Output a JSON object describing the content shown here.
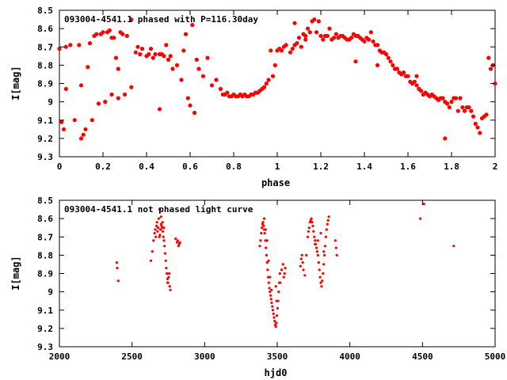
{
  "chart_data": [
    {
      "type": "scatter",
      "title": "093004-4541.1 phased with P=116.30day",
      "xlabel": "phase",
      "ylabel": "I[mag]",
      "xlim": [
        0,
        2
      ],
      "ylim": [
        8.5,
        9.3
      ],
      "y_inverted": true,
      "grid": false,
      "legend": "none",
      "marker_color": "#ff0000",
      "xticks": [
        {
          "value": 0,
          "label": "0"
        },
        {
          "value": 0.2,
          "label": "0.2"
        },
        {
          "value": 0.4,
          "label": "0.4"
        },
        {
          "value": 0.6,
          "label": "0.6"
        },
        {
          "value": 0.8,
          "label": "0.8"
        },
        {
          "value": 1,
          "label": "1"
        },
        {
          "value": 1.2,
          "label": "1.2"
        },
        {
          "value": 1.4,
          "label": "1.4"
        },
        {
          "value": 1.6,
          "label": "1.6"
        },
        {
          "value": 1.8,
          "label": "1.8"
        },
        {
          "value": 2,
          "label": "2"
        }
      ],
      "yticks": [
        {
          "value": 8.5,
          "label": "8.5"
        },
        {
          "value": 8.6,
          "label": "8.6"
        },
        {
          "value": 8.7,
          "label": "8.7"
        },
        {
          "value": 8.8,
          "label": "8.8"
        },
        {
          "value": 8.9,
          "label": "8.9"
        },
        {
          "value": 9,
          "label": "9"
        },
        {
          "value": 9.1,
          "label": "9.1"
        },
        {
          "value": 9.2,
          "label": "9.2"
        },
        {
          "value": 9.3,
          "label": "9.3"
        }
      ],
      "x": [
        0.0,
        0.01,
        0.02,
        0.03,
        0.05,
        0.07,
        0.09,
        0.1,
        0.11,
        0.12,
        0.14,
        0.15,
        0.16,
        0.17,
        0.18,
        0.19,
        0.2,
        0.21,
        0.22,
        0.23,
        0.24,
        0.25,
        0.26,
        0.27,
        0.28,
        0.29,
        0.3,
        0.31,
        0.33,
        0.35,
        0.36,
        0.37,
        0.38,
        0.4,
        0.41,
        0.42,
        0.43,
        0.44,
        0.46,
        0.47,
        0.48,
        0.5,
        0.51,
        0.52,
        0.54,
        0.56,
        0.57,
        0.59,
        0.6,
        0.62,
        0.64,
        0.66,
        0.68,
        0.7,
        0.72,
        0.74,
        0.75,
        0.76,
        0.77,
        0.78,
        0.79,
        0.8,
        0.81,
        0.82,
        0.83,
        0.84,
        0.85,
        0.86,
        0.87,
        0.88,
        0.89,
        0.9,
        0.91,
        0.92,
        0.93,
        0.94,
        0.95,
        0.96,
        0.97,
        0.98,
        0.99,
        1.0,
        1.01,
        1.02,
        1.03,
        1.04,
        1.06,
        1.07,
        1.08,
        1.09,
        1.1,
        1.11,
        1.12,
        1.13,
        1.14,
        1.15,
        1.16,
        1.17,
        1.18,
        1.19,
        1.2,
        1.21,
        1.22,
        1.23,
        1.24,
        1.25,
        1.26,
        1.27,
        1.28,
        1.29,
        1.3,
        1.31,
        1.32,
        1.33,
        1.34,
        1.35,
        1.36,
        1.37,
        1.38,
        1.39,
        1.4,
        1.41,
        1.42,
        1.43,
        1.44,
        1.45,
        1.46,
        1.47,
        1.48,
        1.49,
        1.5,
        1.51,
        1.52,
        1.53,
        1.54,
        1.55,
        1.56,
        1.57,
        1.58,
        1.59,
        1.6,
        1.61,
        1.62,
        1.63,
        1.64,
        1.65,
        1.66,
        1.67,
        1.68,
        1.69,
        1.7,
        1.71,
        1.72,
        1.73,
        1.74,
        1.75,
        1.76,
        1.77,
        1.78,
        1.79,
        1.8,
        1.81,
        1.82,
        1.83,
        1.84,
        1.85,
        1.86,
        1.87,
        1.88,
        1.89,
        1.9,
        1.91,
        1.92,
        1.93,
        1.94,
        1.95,
        1.96,
        1.97,
        1.98,
        1.99,
        2.0,
        0.03,
        0.1,
        0.13,
        0.24,
        0.27,
        0.33,
        0.46,
        0.49,
        0.58,
        0.61,
        0.63,
        1.08,
        1.13,
        1.36,
        1.46,
        1.55,
        1.64,
        1.77
      ],
      "y": [
        8.71,
        9.11,
        9.15,
        8.7,
        8.69,
        9.1,
        8.69,
        9.2,
        9.18,
        9.15,
        8.68,
        9.1,
        8.64,
        8.63,
        9.01,
        8.63,
        8.62,
        9.0,
        8.62,
        8.61,
        8.96,
        8.65,
        8.76,
        8.98,
        8.62,
        8.63,
        8.96,
        8.64,
        8.92,
        8.73,
        8.7,
        8.74,
        8.71,
        8.75,
        8.74,
        8.71,
        8.76,
        8.74,
        8.74,
        8.74,
        8.75,
        8.77,
        8.75,
        8.82,
        8.8,
        8.88,
        8.72,
        8.98,
        9.02,
        9.06,
        8.82,
        8.86,
        8.76,
        8.91,
        8.88,
        8.93,
        8.96,
        8.96,
        8.95,
        8.97,
        8.97,
        8.96,
        8.97,
        8.97,
        8.96,
        8.97,
        8.96,
        8.97,
        8.97,
        8.96,
        8.96,
        8.95,
        8.95,
        8.94,
        8.93,
        8.92,
        8.9,
        8.88,
        8.72,
        8.86,
        8.8,
        8.72,
        8.71,
        8.72,
        8.7,
        8.69,
        8.73,
        8.71,
        8.69,
        8.68,
        8.65,
        8.7,
        8.63,
        8.64,
        8.6,
        8.62,
        8.56,
        8.55,
        8.62,
        8.56,
        8.64,
        8.66,
        8.64,
        8.64,
        8.6,
        8.66,
        8.65,
        8.63,
        8.65,
        8.64,
        8.64,
        8.65,
        8.66,
        8.66,
        8.65,
        8.63,
        8.64,
        8.64,
        8.65,
        8.66,
        8.67,
        8.65,
        8.66,
        8.62,
        8.67,
        8.69,
        8.69,
        8.72,
        8.73,
        8.73,
        8.74,
        8.76,
        8.78,
        8.8,
        8.82,
        8.82,
        8.84,
        8.85,
        8.84,
        8.86,
        8.86,
        8.89,
        8.9,
        8.89,
        8.91,
        8.93,
        8.94,
        8.96,
        8.95,
        8.96,
        8.97,
        8.96,
        8.97,
        8.98,
        8.99,
        8.98,
        8.98,
        9.0,
        9.01,
        9.03,
        9.0,
        8.98,
        8.98,
        9.05,
        8.98,
        9.03,
        9.05,
        9.03,
        9.03,
        9.05,
        9.08,
        9.12,
        9.14,
        9.17,
        9.09,
        9.08,
        9.07,
        8.76,
        8.82,
        8.8,
        8.9,
        8.93,
        8.91,
        8.81,
        8.65,
        8.82,
        8.55,
        9.04,
        8.69,
        8.63,
        8.58,
        8.77,
        8.57,
        8.66,
        8.78,
        8.8,
        8.82,
        8.86,
        9.2
      ]
    },
    {
      "type": "scatter",
      "title": "093004-4541.1 not phased light curve",
      "xlabel": "hjd0",
      "ylabel": "I[mag]",
      "xlim": [
        2000,
        5000
      ],
      "ylim": [
        8.5,
        9.3
      ],
      "y_inverted": true,
      "grid": false,
      "legend": "none",
      "marker_color": "#ff0000",
      "xticks": [
        {
          "value": 2000,
          "label": "2000"
        },
        {
          "value": 2500,
          "label": "2500"
        },
        {
          "value": 3000,
          "label": "3000"
        },
        {
          "value": 3500,
          "label": "3500"
        },
        {
          "value": 4000,
          "label": "4000"
        },
        {
          "value": 4500,
          "label": "4500"
        },
        {
          "value": 5000,
          "label": "5000"
        }
      ],
      "yticks": [
        {
          "value": 8.5,
          "label": "8.5"
        },
        {
          "value": 8.6,
          "label": "8.6"
        },
        {
          "value": 8.7,
          "label": "8.7"
        },
        {
          "value": 8.8,
          "label": "8.8"
        },
        {
          "value": 8.9,
          "label": "8.9"
        },
        {
          "value": 9,
          "label": "9"
        },
        {
          "value": 9.1,
          "label": "9.1"
        },
        {
          "value": 9.2,
          "label": "9.2"
        },
        {
          "value": 9.3,
          "label": "9.3"
        }
      ],
      "x": [
        2395,
        2398,
        2405,
        2630,
        2640,
        2648,
        2655,
        2660,
        2664,
        2668,
        2672,
        2676,
        2680,
        2684,
        2688,
        2692,
        2696,
        2700,
        2704,
        2708,
        2712,
        2716,
        2720,
        2724,
        2728,
        2732,
        2736,
        2740,
        2744,
        2748,
        2752,
        2756,
        2760,
        2764,
        2690,
        2700,
        2710,
        2720,
        2740,
        2745,
        2800,
        2810,
        2815,
        2820,
        2825,
        2830,
        3380,
        3385,
        3390,
        3394,
        3398,
        3402,
        3406,
        3410,
        3414,
        3418,
        3422,
        3426,
        3430,
        3434,
        3438,
        3442,
        3446,
        3450,
        3454,
        3458,
        3462,
        3466,
        3470,
        3474,
        3478,
        3482,
        3486,
        3490,
        3494,
        3498,
        3502,
        3506,
        3510,
        3514,
        3518,
        3410,
        3420,
        3430,
        3440,
        3450,
        3460,
        3490,
        3495,
        3520,
        3530,
        3540,
        3545,
        3550,
        3555,
        3660,
        3665,
        3670,
        3675,
        3680,
        3690,
        3700,
        3710,
        3715,
        3720,
        3725,
        3730,
        3735,
        3740,
        3745,
        3750,
        3755,
        3760,
        3765,
        3770,
        3775,
        3780,
        3785,
        3790,
        3795,
        3800,
        3805,
        3810,
        3815,
        3820,
        3825,
        3830,
        3835,
        3840,
        3845,
        3850,
        3855,
        3760,
        3780,
        3800,
        3820,
        3900,
        3905,
        3910,
        4485,
        4510,
        4715
      ],
      "y": [
        8.84,
        8.87,
        8.94,
        8.83,
        8.78,
        8.72,
        8.68,
        8.66,
        8.7,
        8.64,
        8.62,
        8.67,
        8.65,
        8.6,
        8.7,
        8.69,
        8.66,
        8.63,
        8.64,
        8.65,
        8.67,
        8.7,
        8.72,
        8.75,
        8.79,
        8.83,
        8.87,
        8.9,
        8.93,
        8.95,
        8.92,
        8.9,
        8.97,
        8.99,
        8.55,
        8.59,
        8.62,
        8.65,
        8.9,
        8.95,
        8.71,
        8.73,
        8.72,
        8.75,
        8.74,
        8.73,
        8.75,
        8.72,
        8.68,
        8.65,
        8.63,
        8.62,
        8.64,
        8.66,
        8.68,
        8.72,
        8.76,
        8.8,
        8.84,
        8.88,
        8.92,
        8.95,
        8.98,
        9.0,
        9.02,
        9.04,
        9.06,
        9.08,
        9.1,
        9.12,
        9.14,
        9.16,
        9.18,
        9.19,
        9.17,
        9.13,
        9.09,
        9.05,
        9.0,
        8.95,
        8.9,
        8.6,
        8.66,
        8.72,
        8.83,
        8.92,
        8.99,
        8.97,
        9.05,
        8.95,
        8.88,
        8.85,
        8.92,
        8.9,
        8.87,
        8.86,
        8.82,
        8.8,
        8.84,
        8.88,
        8.91,
        8.8,
        8.7,
        8.67,
        8.65,
        8.62,
        8.61,
        8.6,
        8.62,
        8.64,
        8.67,
        8.7,
        8.72,
        8.74,
        8.76,
        8.78,
        8.8,
        8.84,
        8.88,
        8.92,
        8.95,
        8.97,
        8.94,
        8.9,
        8.85,
        8.8,
        8.75,
        8.7,
        8.66,
        8.63,
        8.61,
        8.59,
        8.74,
        8.72,
        8.68,
        8.78,
        8.72,
        8.76,
        8.8,
        8.6,
        8.52,
        8.75
      ]
    }
  ]
}
